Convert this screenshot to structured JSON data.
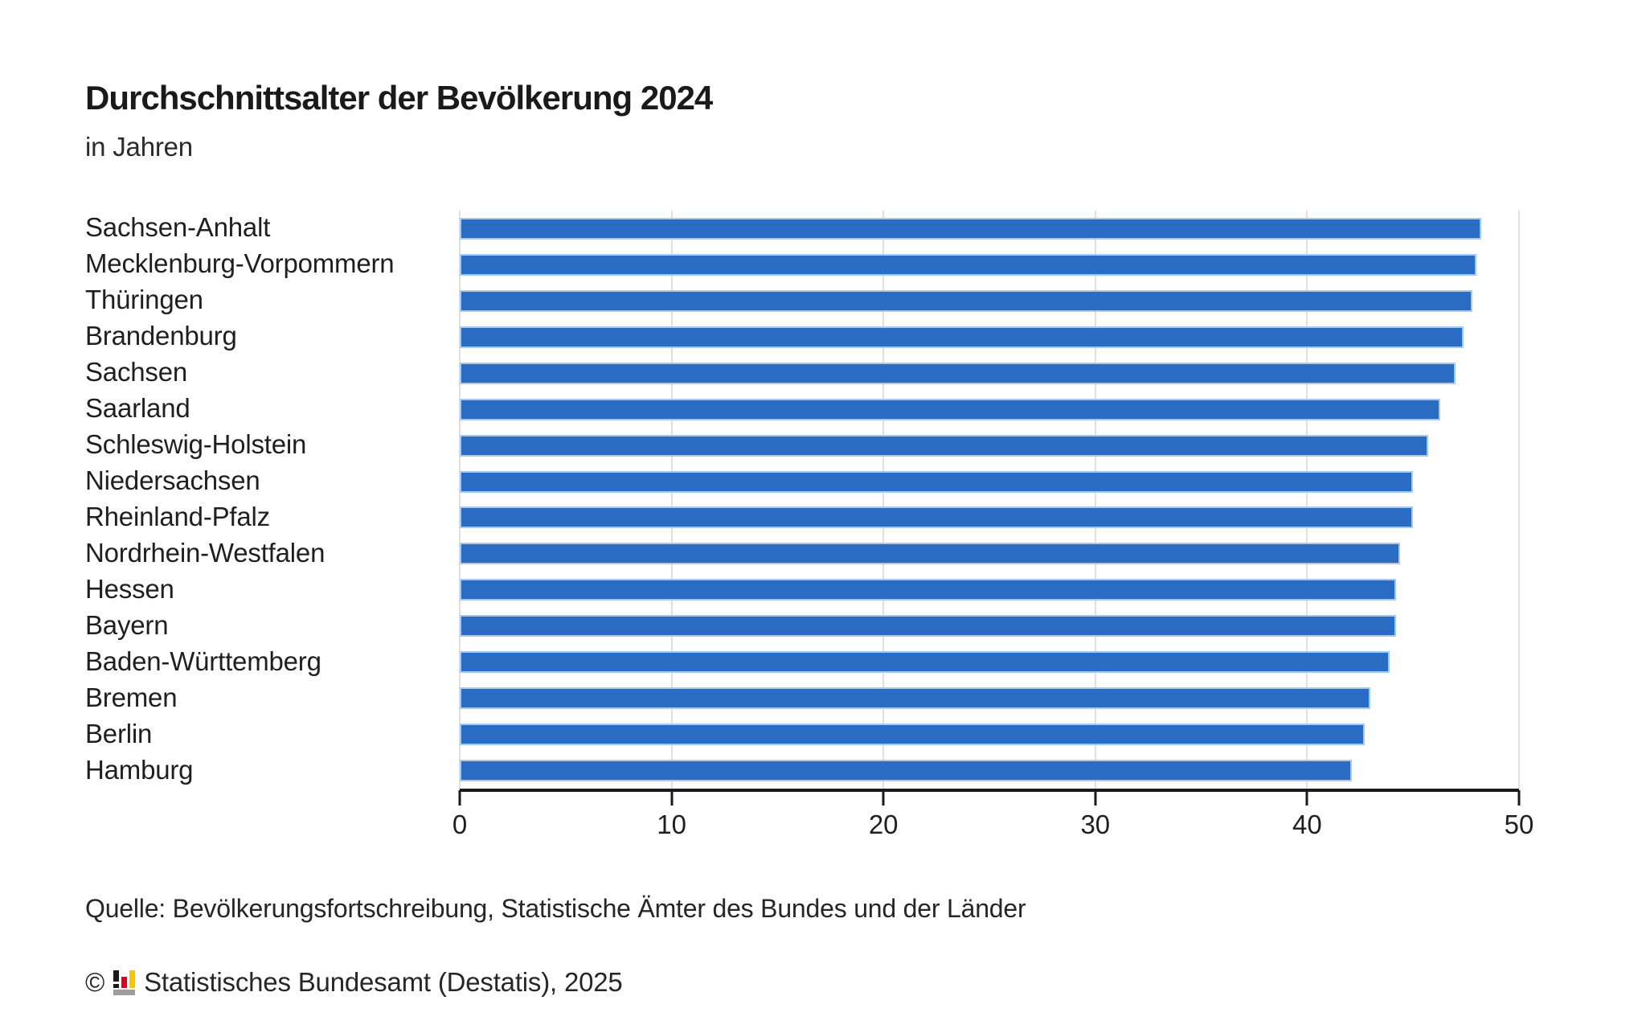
{
  "header": {
    "title": "Durchschnittsalter der Bevölkerung 2024",
    "subtitle": "in Jahren"
  },
  "chart_data": {
    "type": "bar",
    "orientation": "horizontal",
    "title": "Durchschnittsalter der Bevölkerung 2024",
    "subtitle": "in Jahren",
    "unit": "Jahre",
    "categories": [
      "Sachsen-Anhalt",
      "Mecklenburg-Vorpommern",
      "Thüringen",
      "Brandenburg",
      "Sachsen",
      "Saarland",
      "Schleswig-Holstein",
      "Niedersachsen",
      "Rheinland-Pfalz",
      "Nordrhein-Westfalen",
      "Hessen",
      "Bayern",
      "Baden-Württemberg",
      "Bremen",
      "Berlin",
      "Hamburg"
    ],
    "values": [
      48.2,
      48.0,
      47.8,
      47.4,
      47.0,
      46.3,
      45.7,
      45.0,
      45.0,
      44.4,
      44.2,
      44.2,
      43.9,
      43.0,
      42.7,
      42.1
    ],
    "xlim": [
      0,
      50
    ],
    "xticks": [
      0,
      10,
      20,
      30,
      40,
      50
    ],
    "grid": true,
    "legend": false,
    "bar_color": "#2a6cc4",
    "bar_edge_color": "#a9c9ec",
    "gridline_color": "#e0e0e0",
    "axis_color": "#1a1a1a"
  },
  "footer": {
    "source": "Quelle: Bevölkerungsfortschreibung, Statistische Ämter des Bundes und der Länder",
    "copyright_symbol": "©",
    "publisher": "Statistisches Bundesamt (Destatis), 2025"
  }
}
